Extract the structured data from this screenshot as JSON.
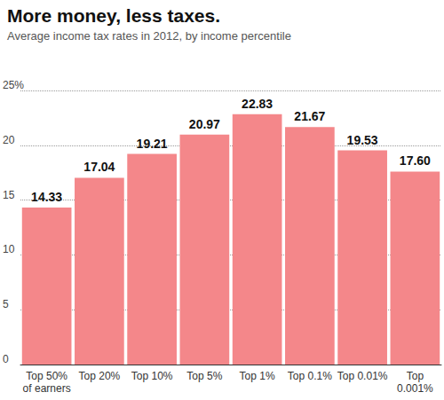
{
  "chart_data": {
    "type": "bar",
    "title": "More money, less taxes.",
    "subtitle": "Average income tax rates in 2012, by income percentile",
    "categories": [
      "Top 50%\nof earners",
      "Top 20%",
      "Top 10%",
      "Top 5%",
      "Top 1%",
      "Top 0.1%",
      "Top 0.01%",
      "Top\n0.001%"
    ],
    "values": [
      14.33,
      17.04,
      19.21,
      20.97,
      22.83,
      21.67,
      19.53,
      17.6
    ],
    "value_labels": [
      "14.33",
      "17.04",
      "19.21",
      "20.97",
      "22.83",
      "21.67",
      "19.53",
      "17.60"
    ],
    "color": "#f4878a",
    "ylim": [
      0,
      25
    ],
    "yticks": [
      0,
      5,
      10,
      15,
      20,
      {
        "value": 25,
        "label": "25%"
      }
    ],
    "grid": true,
    "data_labels": true
  }
}
